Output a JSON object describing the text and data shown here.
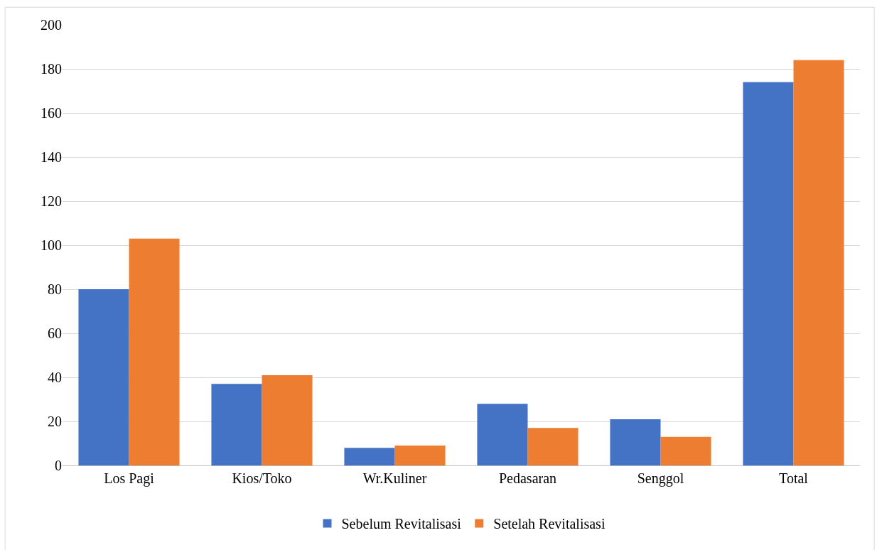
{
  "chart_data": {
    "type": "bar",
    "categories": [
      "Los Pagi",
      "Kios/Toko",
      "Wr.Kuliner",
      "Pedasaran",
      "Senggol",
      "Total"
    ],
    "series": [
      {
        "name": "Sebelum Revitalisasi",
        "color": "#4472c4",
        "values": [
          80,
          37,
          8,
          28,
          21,
          174
        ]
      },
      {
        "name": "Setelah Revitalisasi",
        "color": "#ed7d31",
        "values": [
          103,
          41,
          9,
          17,
          13,
          184
        ]
      }
    ],
    "ylim": [
      0,
      200
    ],
    "yticks": [
      0,
      20,
      40,
      60,
      80,
      100,
      120,
      140,
      160,
      180,
      200
    ],
    "grid": "y",
    "legend": "bottom"
  }
}
